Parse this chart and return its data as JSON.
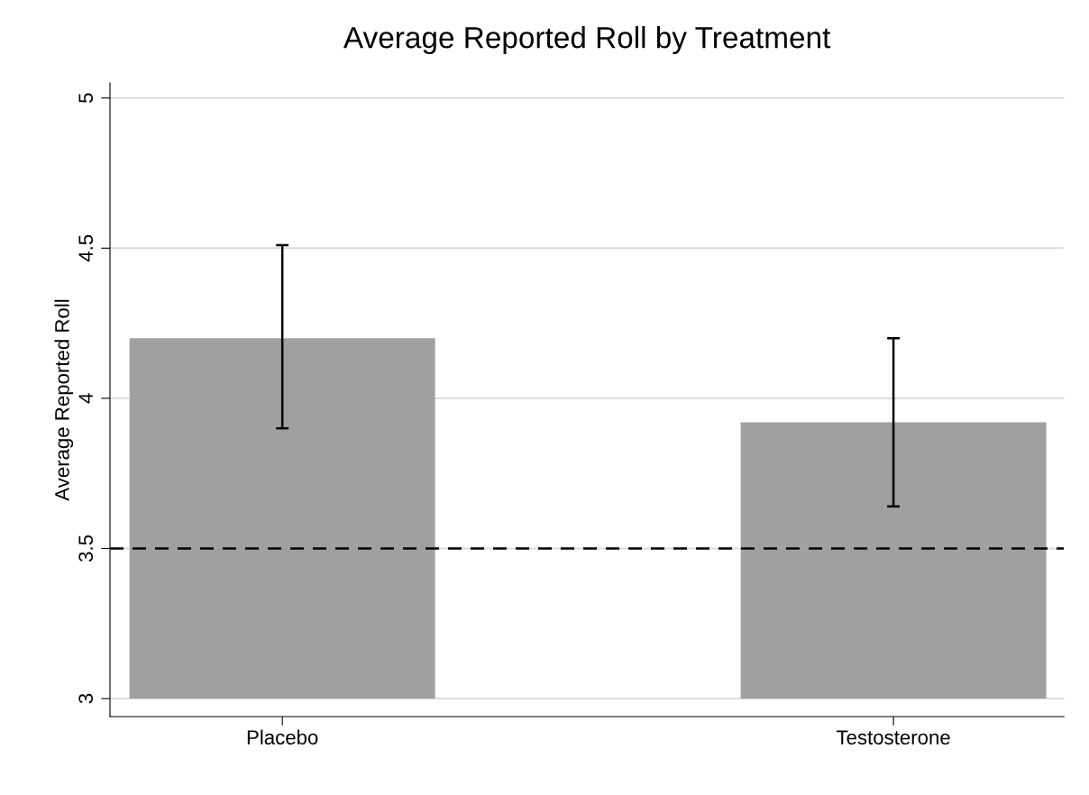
{
  "chart_data": {
    "type": "bar",
    "title": "Average Reported Roll by Treatment",
    "ylabel": "Average Reported Roll",
    "categories": [
      "Placebo",
      "Testosterone"
    ],
    "base": [
      3,
      3
    ],
    "values": [
      1.2,
      0.92
    ],
    "errors": [
      [
        3.9,
        4.51
      ],
      [
        3.64,
        4.2
      ]
    ],
    "color": "#a0a0a0",
    "ylim": [
      2.94,
      5.05
    ],
    "yticks": [
      3,
      3.5,
      4,
      4.5,
      5
    ],
    "grid": "y",
    "ref_lines": [
      {
        "axis": "y",
        "value": 3.5,
        "color": "#000000",
        "line_style": "dashed"
      }
    ]
  }
}
